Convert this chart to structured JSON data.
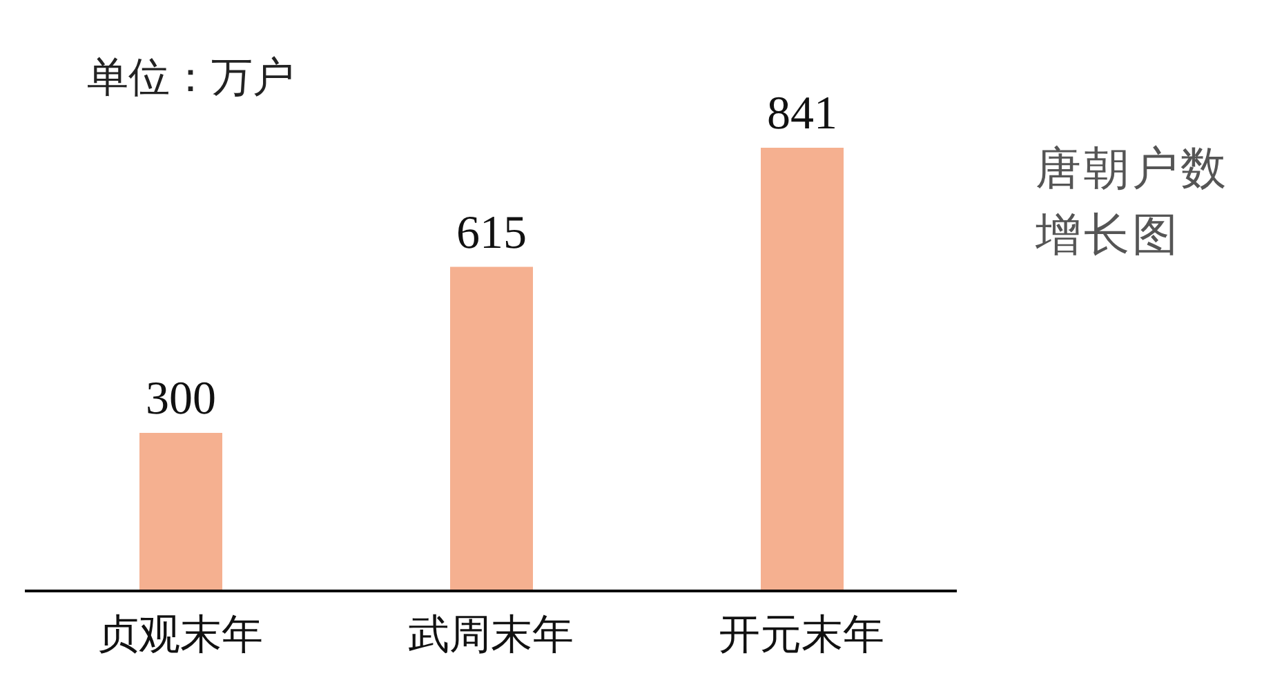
{
  "chart_data": {
    "type": "bar",
    "title": "唐朝户数增长图",
    "annotations": [
      "单位：万户"
    ],
    "categories": [
      "贞观末年",
      "武周末年",
      "开元末年"
    ],
    "values": [
      300,
      615,
      841
    ],
    "color": "#f5b090",
    "data_labels": true
  }
}
